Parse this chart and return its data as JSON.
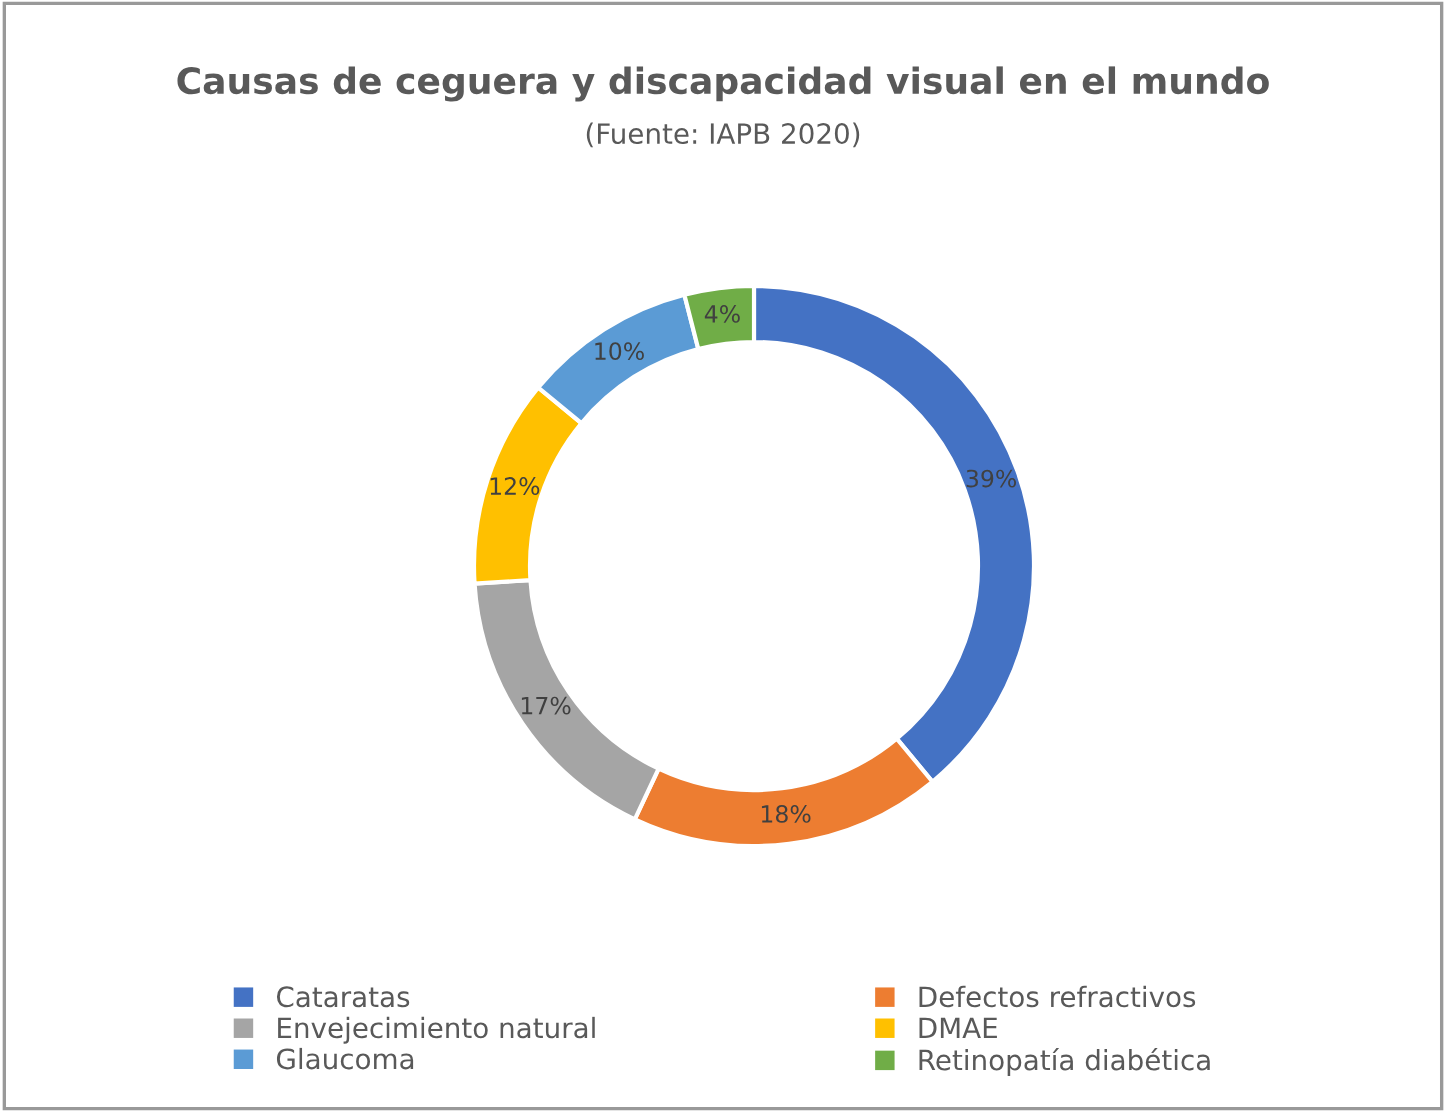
{
  "chart_data": {
    "type": "donut",
    "title": "Causas de ceguera y discapacidad visual en el mundo",
    "subtitle": "(Fuente: IAPB 2020)",
    "categories": [
      "Cataratas",
      "Defectos refractivos",
      "Envejecimiento natural",
      "DMAE",
      "Glaucoma",
      "Retinopatía diabética"
    ],
    "values": [
      39,
      18,
      17,
      12,
      10,
      4
    ],
    "value_labels": [
      "39%",
      "18%",
      "17%",
      "12%",
      "10%",
      "4%"
    ],
    "colors": [
      "#4472c4",
      "#ed7d31",
      "#a5a5a5",
      "#ffc000",
      "#5b9bd5",
      "#70ad47"
    ],
    "legend": "bottom"
  }
}
